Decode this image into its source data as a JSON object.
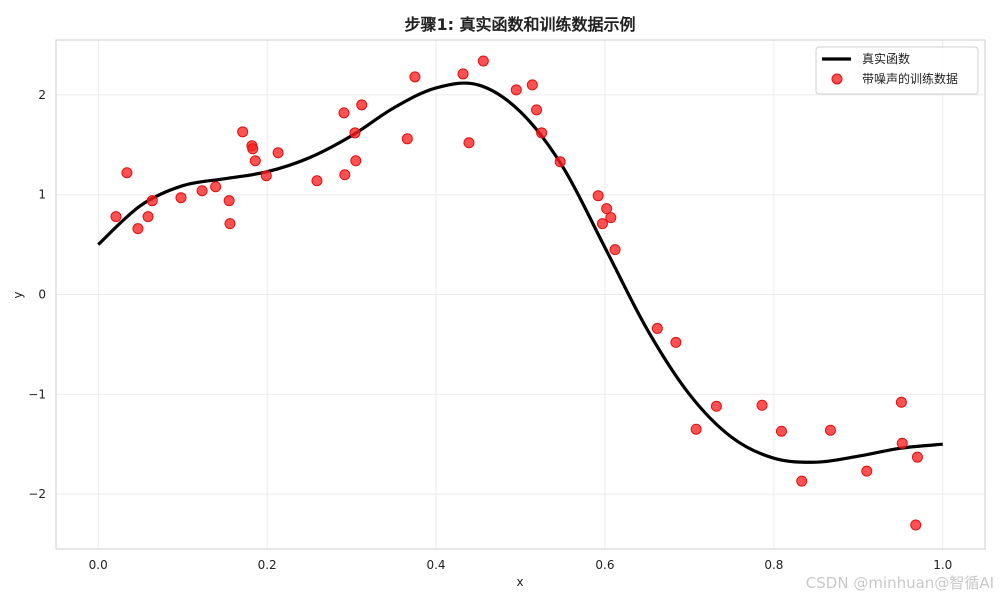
{
  "chart_data": {
    "type": "scatter",
    "title": "步骤1: 真实函数和训练数据示例",
    "xlabel": "x",
    "ylabel": "y",
    "xlim": [
      -0.05,
      1.05
    ],
    "ylim": [
      -2.55,
      2.55
    ],
    "xticks": [
      0.0,
      0.2,
      0.4,
      0.6,
      0.8,
      1.0
    ],
    "xtick_labels": [
      "0.0",
      "0.2",
      "0.4",
      "0.6",
      "0.8",
      "1.0"
    ],
    "yticks": [
      -2,
      -1,
      0,
      1,
      2
    ],
    "ytick_labels": [
      "−2",
      "−1",
      "0",
      "1",
      "2"
    ],
    "grid": true,
    "legend": "top-right",
    "series": [
      {
        "name": "真实函数",
        "kind": "line",
        "color": "#000000",
        "x": [
          0.0,
          0.05,
          0.1,
          0.15,
          0.2,
          0.25,
          0.3,
          0.35,
          0.4,
          0.45,
          0.5,
          0.55,
          0.6,
          0.65,
          0.7,
          0.75,
          0.8,
          0.85,
          0.9,
          0.95,
          1.0
        ],
        "y": [
          0.5,
          0.89,
          1.09,
          1.16,
          1.23,
          1.37,
          1.59,
          1.87,
          2.07,
          2.1,
          1.83,
          1.28,
          0.47,
          -0.35,
          -1.0,
          -1.43,
          -1.64,
          -1.68,
          -1.62,
          -1.54,
          -1.5
        ]
      },
      {
        "name": "带噪声的训练数据",
        "kind": "scatter",
        "color": "#ff2020",
        "x": [
          0.021,
          0.034,
          0.047,
          0.059,
          0.064,
          0.098,
          0.123,
          0.139,
          0.155,
          0.156,
          0.171,
          0.182,
          0.183,
          0.186,
          0.199,
          0.213,
          0.259,
          0.291,
          0.292,
          0.304,
          0.305,
          0.312,
          0.366,
          0.375,
          0.432,
          0.439,
          0.456,
          0.495,
          0.514,
          0.519,
          0.525,
          0.547,
          0.592,
          0.597,
          0.602,
          0.607,
          0.612,
          0.662,
          0.684,
          0.708,
          0.732,
          0.786,
          0.809,
          0.833,
          0.867,
          0.91,
          0.951,
          0.952,
          0.968,
          0.97
        ],
        "y": [
          0.78,
          1.22,
          0.66,
          0.78,
          0.94,
          0.97,
          1.04,
          1.08,
          0.94,
          0.71,
          1.63,
          1.49,
          1.46,
          1.34,
          1.19,
          1.42,
          1.14,
          1.82,
          1.2,
          1.62,
          1.34,
          1.9,
          1.56,
          2.18,
          2.21,
          1.52,
          2.34,
          2.05,
          2.1,
          1.85,
          1.62,
          1.33,
          0.99,
          0.71,
          0.86,
          0.77,
          0.45,
          -0.34,
          -0.48,
          -1.35,
          -1.12,
          -1.11,
          -1.37,
          -1.87,
          -1.36,
          -1.77,
          -1.08,
          -1.49,
          -2.31,
          -1.63
        ]
      }
    ]
  },
  "watermark": "CSDN @minhuan@智循AI"
}
